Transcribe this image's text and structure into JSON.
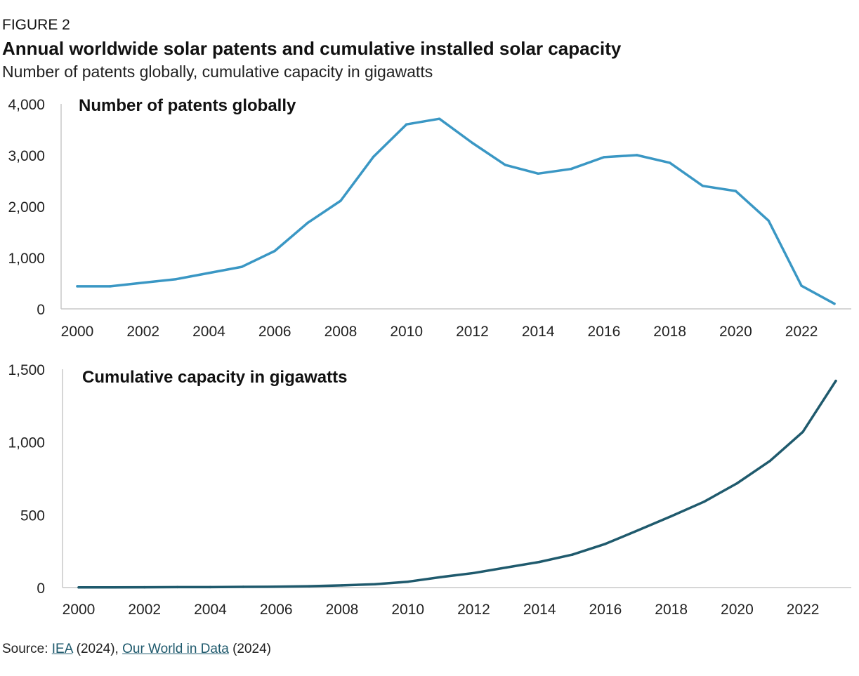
{
  "figure_label": "FIGURE 2",
  "title": "Annual worldwide solar patents and cumulative installed solar capacity",
  "subtitle": "Number of patents globally, cumulative capacity in gigawatts",
  "source": {
    "prefix": "Source: ",
    "link1": "IEA",
    "mid": " (2024), ",
    "link2": "Our World in Data",
    "suffix": " (2024)"
  },
  "chart_data": [
    {
      "type": "line",
      "title": "Number of patents globally",
      "color": "#3a97c4",
      "xlabel": "",
      "ylabel": "",
      "x": [
        2000,
        2001,
        2002,
        2003,
        2004,
        2005,
        2006,
        2007,
        2008,
        2009,
        2010,
        2011,
        2012,
        2013,
        2014,
        2015,
        2016,
        2017,
        2018,
        2019,
        2020,
        2021,
        2022,
        2023
      ],
      "y": [
        440,
        440,
        510,
        580,
        700,
        820,
        1130,
        1680,
        2110,
        2970,
        3600,
        3710,
        3240,
        2810,
        2640,
        2730,
        2960,
        3000,
        2850,
        2400,
        2300,
        1720,
        450,
        100
      ],
      "xticks": [
        2000,
        2002,
        2004,
        2006,
        2008,
        2010,
        2012,
        2014,
        2016,
        2018,
        2020,
        2022
      ],
      "xticklabels": [
        "2000",
        "2002",
        "2004",
        "2006",
        "2008",
        "2010",
        "2012",
        "2014",
        "2016",
        "2018",
        "2020",
        "2022"
      ],
      "yticks": [
        0,
        1000,
        2000,
        3000,
        4000
      ],
      "yticklabels": [
        "0",
        "1,000",
        "2,000",
        "3,000",
        "4,000"
      ],
      "xlim": [
        2000,
        2023
      ],
      "ylim": [
        0,
        4000
      ],
      "grid": false
    },
    {
      "type": "line",
      "title": "Cumulative capacity in gigawatts",
      "color": "#1f5a6d",
      "xlabel": "",
      "ylabel": "",
      "x": [
        2000,
        2001,
        2002,
        2003,
        2004,
        2005,
        2006,
        2007,
        2008,
        2009,
        2010,
        2011,
        2012,
        2013,
        2014,
        2015,
        2016,
        2017,
        2018,
        2019,
        2020,
        2021,
        2022,
        2023
      ],
      "y": [
        1,
        1,
        2,
        3,
        3,
        5,
        6,
        9,
        15,
        23,
        40,
        72,
        100,
        138,
        176,
        226,
        300,
        394,
        490,
        590,
        716,
        870,
        1070,
        1420
      ],
      "xticks": [
        2000,
        2002,
        2004,
        2006,
        2008,
        2010,
        2012,
        2014,
        2016,
        2018,
        2020,
        2022
      ],
      "xticklabels": [
        "2000",
        "2002",
        "2004",
        "2006",
        "2008",
        "2010",
        "2012",
        "2014",
        "2016",
        "2018",
        "2020",
        "2022"
      ],
      "yticks": [
        0,
        500,
        1000,
        1500
      ],
      "yticklabels": [
        "0",
        "500",
        "1,000",
        "1,500"
      ],
      "xlim": [
        2000,
        2023
      ],
      "ylim": [
        0,
        1500
      ],
      "grid": false
    }
  ]
}
